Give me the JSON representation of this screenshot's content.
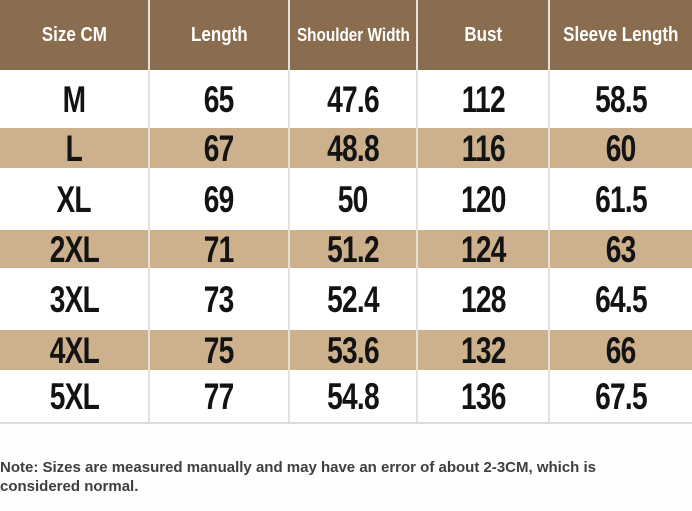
{
  "table": {
    "headers": [
      "Size CM",
      "Length",
      "Shoulder Width",
      "Bust",
      "Sleeve Length"
    ],
    "rows": [
      [
        "M",
        "65",
        "47.6",
        "112",
        "58.5"
      ],
      [
        "L",
        "67",
        "48.8",
        "116",
        "60"
      ],
      [
        "XL",
        "69",
        "50",
        "120",
        "61.5"
      ],
      [
        "2XL",
        "71",
        "51.2",
        "124",
        "63"
      ],
      [
        "3XL",
        "73",
        "52.4",
        "128",
        "64.5"
      ],
      [
        "4XL",
        "75",
        "53.6",
        "132",
        "66"
      ],
      [
        "5XL",
        "77",
        "54.8",
        "136",
        "67.5"
      ]
    ]
  },
  "note_text": "Note: Sizes are measured manually and may have an error of about 2-3CM, which is considered normal.",
  "colors": {
    "header_bg": "#8a6c4e",
    "stripe_bg": "#cdb08c",
    "divider": "#e4e1da",
    "header_text": "#ffffff",
    "body_text": "#131313",
    "note_text": "#3e3e3e"
  }
}
